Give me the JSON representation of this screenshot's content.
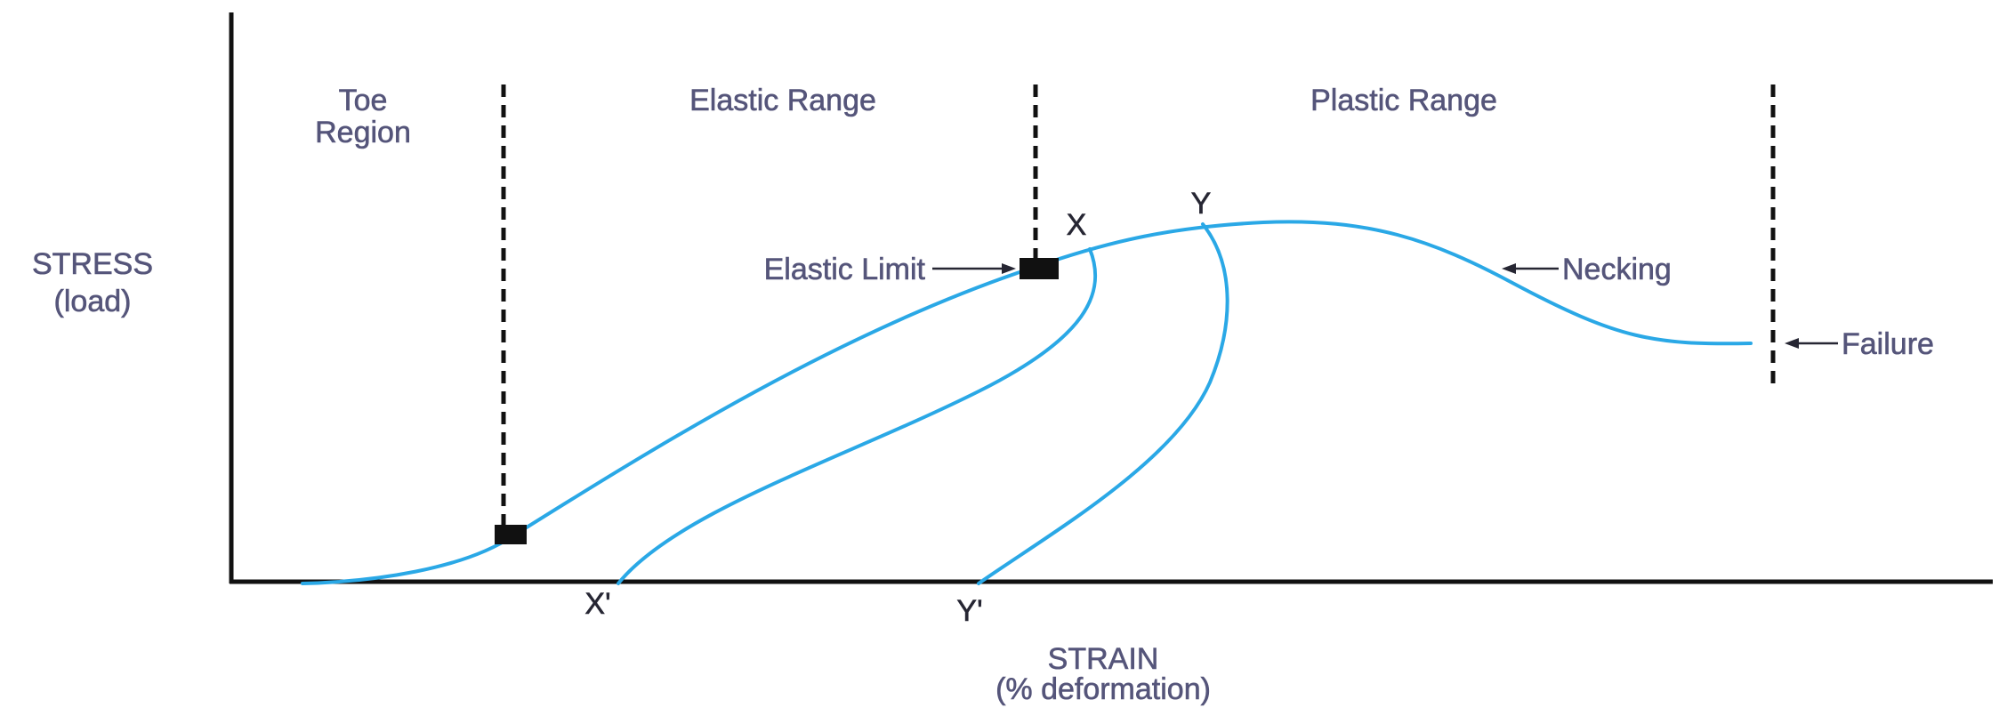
{
  "axes": {
    "y_title": "STRESS",
    "y_subtitle": "(load)",
    "x_title": "STRAIN",
    "x_subtitle": "(% deformation)"
  },
  "regions": {
    "toe_line1": "Toe",
    "toe_line2": "Region",
    "elastic": "Elastic Range",
    "plastic": "Plastic Range"
  },
  "points": {
    "x": "X",
    "x_prime": "X'",
    "y": "Y",
    "y_prime": "Y'"
  },
  "annotations": {
    "elastic_limit": "Elastic Limit",
    "necking": "Necking",
    "failure": "Failure"
  },
  "colors": {
    "curve": "#2aa8e6",
    "axes": "#111111",
    "text": "#55557a"
  }
}
